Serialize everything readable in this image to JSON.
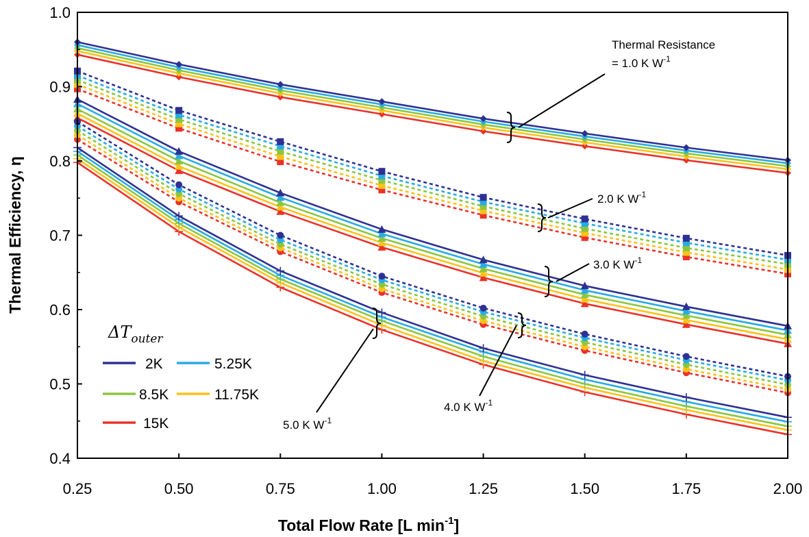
{
  "chart_data": {
    "type": "line",
    "ylabel": "Thermal Efficiency, η",
    "xlabel": {
      "main": "Total Flow Rate [L min",
      "sup": "-1",
      "end": "]"
    },
    "x": [
      0.25,
      0.5,
      0.75,
      1.0,
      1.25,
      1.5,
      1.75,
      2.0
    ],
    "x_tick_labels": [
      "0.25",
      "0.50",
      "0.75",
      "1.00",
      "1.25",
      "1.50",
      "1.75",
      "2.00"
    ],
    "xlim": [
      0.25,
      2.0
    ],
    "ylim": [
      0.4,
      1.0
    ],
    "y_ticks": [
      0.4,
      0.5,
      0.6,
      0.7,
      0.8,
      0.9,
      1.0
    ],
    "y_tick_labels": [
      "0.4",
      "0.5",
      "0.6",
      "0.7",
      "0.8",
      "0.9",
      "1.0"
    ],
    "grid": false,
    "legend": {
      "placement": "bottom-left",
      "title": "ΔT",
      "title_sub": "outer",
      "entries": [
        {
          "label": "2K",
          "color": "#2e3192"
        },
        {
          "label": "5.25K",
          "color": "#29abe2"
        },
        {
          "label": "8.5K",
          "color": "#8cc63f"
        },
        {
          "label": "11.75K",
          "color": "#fcc21b"
        },
        {
          "label": "15K",
          "color": "#e8332a"
        }
      ]
    },
    "colors": [
      "#2e3192",
      "#29abe2",
      "#8cc63f",
      "#fcc21b",
      "#e8332a"
    ],
    "groups": [
      {
        "style": "solid",
        "marker": "diamond",
        "series": [
          [
            0.96,
            0.93,
            0.903,
            0.88,
            0.857,
            0.837,
            0.818,
            0.801
          ],
          [
            0.956,
            0.926,
            0.899,
            0.876,
            0.853,
            0.833,
            0.814,
            0.797
          ],
          [
            0.952,
            0.922,
            0.895,
            0.872,
            0.849,
            0.829,
            0.81,
            0.793
          ],
          [
            0.948,
            0.918,
            0.891,
            0.868,
            0.845,
            0.825,
            0.806,
            0.789
          ],
          [
            0.943,
            0.913,
            0.886,
            0.863,
            0.84,
            0.82,
            0.801,
            0.784
          ]
        ]
      },
      {
        "style": "dashed",
        "marker": "square",
        "series": [
          [
            0.921,
            0.868,
            0.826,
            0.786,
            0.751,
            0.722,
            0.696,
            0.673
          ],
          [
            0.915,
            0.862,
            0.82,
            0.78,
            0.745,
            0.716,
            0.69,
            0.667
          ],
          [
            0.909,
            0.856,
            0.813,
            0.774,
            0.739,
            0.709,
            0.683,
            0.661
          ],
          [
            0.903,
            0.85,
            0.806,
            0.767,
            0.733,
            0.703,
            0.677,
            0.654
          ],
          [
            0.897,
            0.844,
            0.799,
            0.761,
            0.727,
            0.697,
            0.671,
            0.648
          ]
        ]
      },
      {
        "style": "solid",
        "marker": "triangle",
        "series": [
          [
            0.883,
            0.813,
            0.757,
            0.708,
            0.667,
            0.632,
            0.604,
            0.578
          ],
          [
            0.877,
            0.807,
            0.751,
            0.702,
            0.661,
            0.626,
            0.598,
            0.572
          ],
          [
            0.87,
            0.8,
            0.744,
            0.696,
            0.655,
            0.62,
            0.592,
            0.566
          ],
          [
            0.864,
            0.793,
            0.738,
            0.69,
            0.649,
            0.614,
            0.586,
            0.56
          ],
          [
            0.858,
            0.787,
            0.732,
            0.684,
            0.643,
            0.608,
            0.58,
            0.554
          ]
        ]
      },
      {
        "style": "dashed",
        "marker": "circle",
        "series": [
          [
            0.853,
            0.768,
            0.7,
            0.645,
            0.602,
            0.567,
            0.537,
            0.51
          ],
          [
            0.847,
            0.762,
            0.694,
            0.64,
            0.597,
            0.562,
            0.532,
            0.505
          ],
          [
            0.841,
            0.756,
            0.688,
            0.634,
            0.591,
            0.556,
            0.526,
            0.499
          ],
          [
            0.835,
            0.75,
            0.683,
            0.628,
            0.585,
            0.55,
            0.52,
            0.493
          ],
          [
            0.829,
            0.745,
            0.678,
            0.623,
            0.58,
            0.545,
            0.515,
            0.488
          ]
        ]
      },
      {
        "style": "solid",
        "marker": "plus",
        "series": [
          [
            0.818,
            0.726,
            0.652,
            0.596,
            0.548,
            0.512,
            0.482,
            0.455
          ],
          [
            0.813,
            0.721,
            0.646,
            0.59,
            0.543,
            0.506,
            0.476,
            0.449
          ],
          [
            0.808,
            0.716,
            0.641,
            0.585,
            0.537,
            0.5,
            0.47,
            0.443
          ],
          [
            0.803,
            0.711,
            0.636,
            0.579,
            0.531,
            0.495,
            0.465,
            0.438
          ],
          [
            0.798,
            0.705,
            0.63,
            0.573,
            0.526,
            0.489,
            0.459,
            0.432
          ]
        ]
      }
    ],
    "annotations": [
      {
        "lines": [
          "Thermal Resistance",
          "= 1.0 K W"
        ],
        "sup": "-1"
      },
      {
        "lines": [
          "2.0 K W"
        ],
        "sup": "-1"
      },
      {
        "lines": [
          "3.0 K W"
        ],
        "sup": "-1"
      },
      {
        "lines": [
          "4.0 K W"
        ],
        "sup": "-1"
      },
      {
        "lines": [
          "5.0 K W"
        ],
        "sup": "-1"
      }
    ]
  }
}
